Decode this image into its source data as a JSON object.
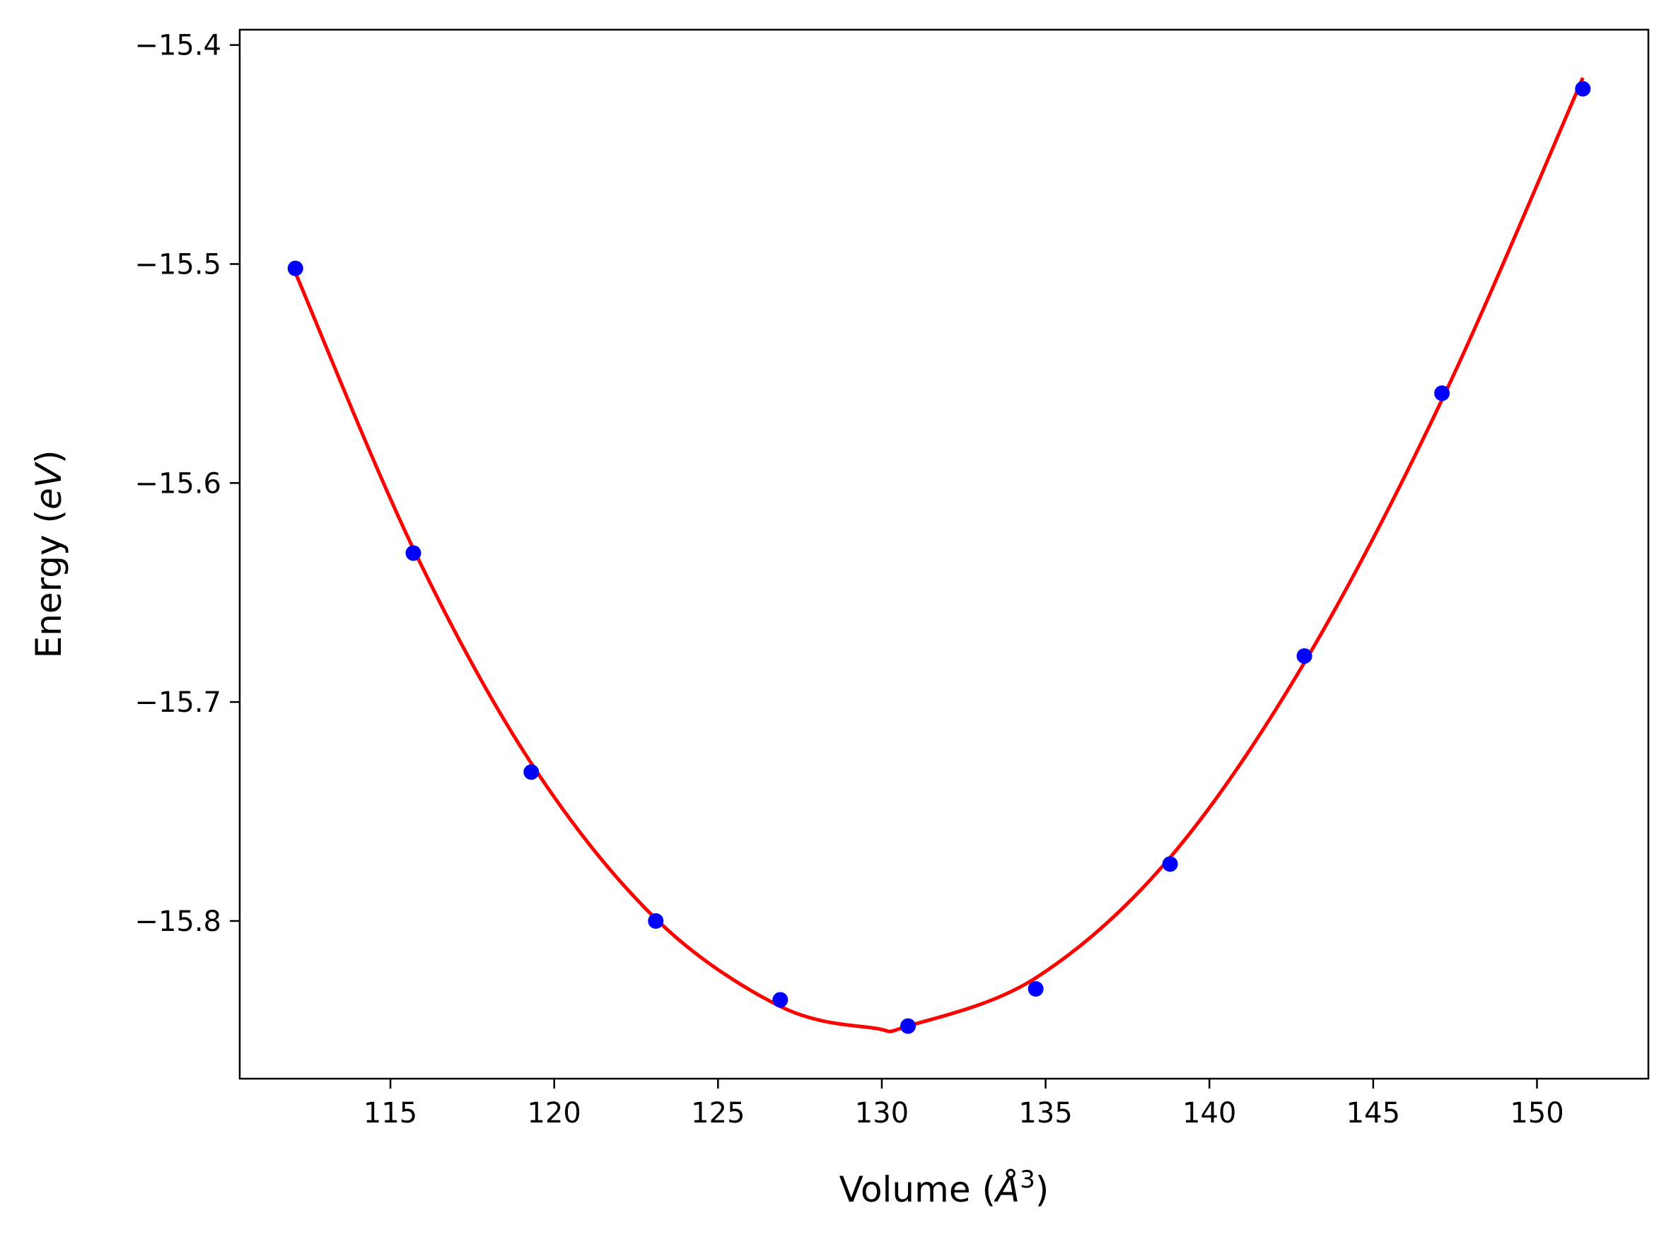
{
  "chart_data": {
    "type": "line",
    "xlabel": {
      "prefix": "Volume (",
      "symbol": "Å",
      "sup": "3",
      "suffix": ")"
    },
    "ylabel": {
      "prefix": "Energy (",
      "unit": "eV",
      "suffix": ")"
    },
    "xlim": [
      110.4,
      153.4
    ],
    "ylim": [
      -15.872,
      -15.393
    ],
    "x_ticks": [
      115,
      120,
      125,
      130,
      135,
      140,
      145,
      150
    ],
    "y_ticks": [
      -15.8,
      -15.7,
      -15.6,
      -15.5,
      -15.4
    ],
    "y_tick_labels": [
      "−15.8",
      "−15.7",
      "−15.6",
      "−15.5",
      "−15.4"
    ],
    "grid": false,
    "series": [
      {
        "kind": "scatter",
        "color": "#0000ff",
        "x": [
          112.1,
          115.7,
          119.3,
          123.1,
          126.9,
          130.8,
          134.7,
          138.8,
          142.9,
          147.1,
          151.4
        ],
        "y": [
          -15.502,
          -15.632,
          -15.732,
          -15.8,
          -15.836,
          -15.848,
          -15.831,
          -15.774,
          -15.679,
          -15.559,
          -15.42
        ]
      },
      {
        "kind": "line",
        "color": "#ff0000",
        "x": [
          112.1,
          115.7,
          119.3,
          123.1,
          126.9,
          129.8,
          130.8,
          134.7,
          138.8,
          142.9,
          147.1,
          151.4
        ],
        "y": [
          -15.504,
          -15.63,
          -15.728,
          -15.799,
          -15.839,
          -15.849,
          -15.848,
          -15.826,
          -15.771,
          -15.682,
          -15.562,
          -15.415
        ]
      }
    ]
  }
}
